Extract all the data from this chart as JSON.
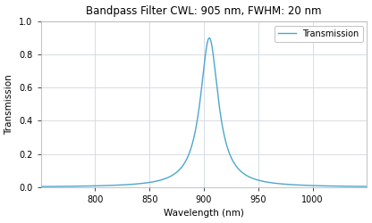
{
  "title": "Bandpass Filter CWL: 905 nm, FWHM: 20 nm",
  "xlabel": "Wavelength (nm)",
  "ylabel": "Transmission",
  "legend_label": "Transmission",
  "cwl": 905,
  "fwhm": 20,
  "peak_transmission": 0.9,
  "x_min": 750,
  "x_max": 1050,
  "y_min": 0.0,
  "y_max": 1.0,
  "xticks": [
    800,
    850,
    900,
    950,
    1000
  ],
  "yticks": [
    0.0,
    0.2,
    0.4,
    0.6,
    0.8,
    1.0
  ],
  "line_color": "#4da6cc",
  "background_color": "#ffffff",
  "grid_color": "#d0d8e0",
  "title_fontsize": 8.5,
  "label_fontsize": 7.5,
  "tick_fontsize": 7,
  "legend_fontsize": 7,
  "figsize": [
    4.16,
    2.5
  ],
  "dpi": 100,
  "linewidth": 1.0
}
